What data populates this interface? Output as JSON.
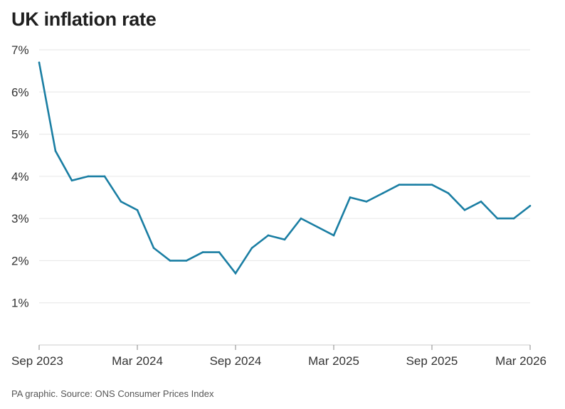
{
  "title": "UK inflation rate",
  "source": "PA graphic. Source: ONS Consumer Prices Index",
  "colors": {
    "line": "#1a7ea3",
    "grid": "#e6e6e6",
    "axis": "#cccccc"
  },
  "chart_data": {
    "type": "line",
    "title": "UK inflation rate",
    "xlabel": "",
    "ylabel": "",
    "x": [
      "2023-09",
      "2023-10",
      "2023-11",
      "2023-12",
      "2024-01",
      "2024-02",
      "2024-03",
      "2024-04",
      "2024-05",
      "2024-06",
      "2024-07",
      "2024-08",
      "2024-09",
      "2024-10",
      "2024-11",
      "2024-12",
      "2025-01",
      "2025-02",
      "2025-03",
      "2025-04",
      "2025-05",
      "2025-06",
      "2025-07",
      "2025-08",
      "2025-09",
      "2025-10",
      "2025-11",
      "2025-12",
      "2026-01",
      "2026-02",
      "2026-03"
    ],
    "series": [
      {
        "values": [
          6.7,
          4.6,
          3.9,
          4.0,
          4.0,
          3.4,
          3.2,
          2.3,
          2.0,
          2.0,
          2.2,
          2.2,
          1.7,
          2.3,
          2.6,
          2.5,
          3.0,
          2.8,
          2.6,
          3.5,
          3.4,
          3.6,
          3.8,
          3.8,
          3.8,
          3.6,
          3.2,
          3.4,
          3.0,
          3.0,
          3.3
        ]
      }
    ],
    "ylim": [
      0,
      7
    ],
    "yticks": [
      1,
      2,
      3,
      4,
      5,
      6,
      7
    ],
    "ytick_labels": [
      "1%",
      "2%",
      "3%",
      "4%",
      "5%",
      "6%",
      "7%"
    ],
    "xticks": [
      {
        "index": 0,
        "label": "Sep 2023"
      },
      {
        "index": 6,
        "label": "Mar 2024"
      },
      {
        "index": 12,
        "label": "Sep 2024"
      },
      {
        "index": 18,
        "label": "Mar 2025"
      },
      {
        "index": 24,
        "label": "Sep 2025"
      },
      {
        "index": 30,
        "label": "Mar 2026"
      }
    ],
    "grid": true
  }
}
